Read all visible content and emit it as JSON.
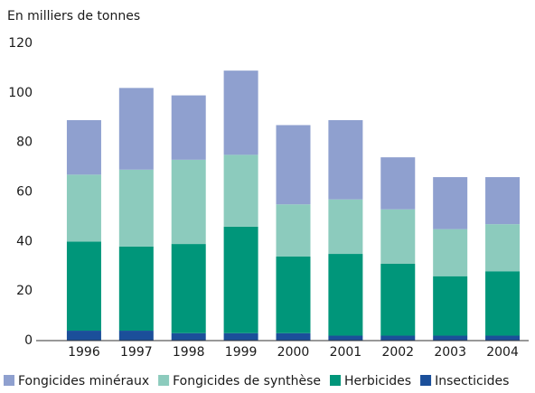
{
  "chart_data": {
    "type": "stacked_bar",
    "y_label": "En milliers de tonnes",
    "categories": [
      "1996",
      "1997",
      "1998",
      "1999",
      "2000",
      "2001",
      "2002",
      "2003",
      "2004"
    ],
    "series": [
      {
        "name": "Fongicides minéraux",
        "color": "#8fa0cf",
        "values": [
          22,
          33,
          26,
          34,
          32,
          32,
          21,
          21,
          19
        ]
      },
      {
        "name": "Fongicides de synthèse",
        "color": "#8ccbbd",
        "values": [
          27,
          31,
          34,
          29,
          21,
          22,
          22,
          19,
          19
        ]
      },
      {
        "name": "Herbicides",
        "color": "#00967a",
        "values": [
          36,
          34,
          36,
          43,
          31,
          33,
          29,
          24,
          26
        ]
      },
      {
        "name": "Insecticides",
        "color": "#1b4f9a",
        "values": [
          4,
          4,
          3,
          3,
          3,
          2,
          2,
          2,
          2
        ]
      }
    ],
    "ylim": [
      0,
      120
    ],
    "yticks": [
      0,
      20,
      40,
      60,
      80,
      100,
      120
    ]
  }
}
